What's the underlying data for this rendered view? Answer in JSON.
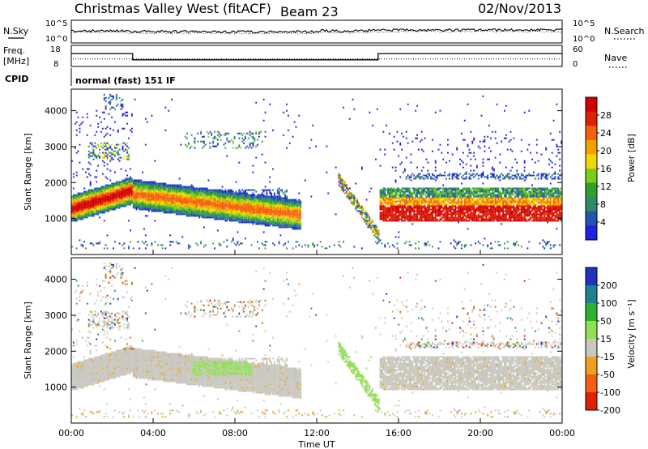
{
  "header": {
    "station": "Christmas Valley West (fitACF)",
    "beam": "Beam 23",
    "date": "02/Nov/2013"
  },
  "noise_panel": {
    "left_label": "N.Sky",
    "right_label": "N.Search",
    "left_ticks": [
      "10^5",
      "10^0"
    ],
    "right_ticks": [
      "10^5",
      "10^0"
    ]
  },
  "freq_panel": {
    "left_label": "Freq.",
    "left_unit": "[MHz]",
    "right_label": "Nave",
    "left_ticks": [
      "18",
      "8"
    ],
    "right_ticks": [
      "60",
      "0"
    ],
    "freq_steps": [
      {
        "from_hour": 0,
        "to_hour": 3,
        "mhz": 14.3
      },
      {
        "from_hour": 3,
        "to_hour": 15,
        "mhz": 10.8
      },
      {
        "from_hour": 15,
        "to_hour": 24,
        "mhz": 14.3
      }
    ],
    "nave_level": 20
  },
  "cpid": {
    "label": "CPID",
    "value": "normal (fast) 151 IF"
  },
  "chart_data": [
    {
      "type": "heatmap",
      "name": "power",
      "ylabel": "Slant Range [km]",
      "ylim": [
        0,
        4600
      ],
      "yticks": [
        "1000",
        "2000",
        "3000",
        "4000"
      ],
      "colorbar_label": "Power [dB]",
      "colorbar_ticks": [
        "4",
        "8",
        "12",
        "16",
        "20",
        "24",
        "28"
      ],
      "colors": [
        "#2020dd",
        "#2255b0",
        "#2e8a6a",
        "#2ea02e",
        "#7ccc1c",
        "#f0d800",
        "#f4a000",
        "#f46010",
        "#e02000",
        "#d00000"
      ]
    },
    {
      "type": "heatmap",
      "name": "velocity",
      "ylabel": "Slant Range [km]",
      "xlabel": "Time UT",
      "ylim": [
        0,
        4600
      ],
      "yticks": [
        "1000",
        "2000",
        "3000",
        "4000"
      ],
      "xticks": [
        "00:00",
        "04:00",
        "08:00",
        "12:00",
        "16:00",
        "20:00",
        "00:00"
      ],
      "xlim_hours": [
        0,
        24
      ],
      "colorbar_label": "Velocity [m s⁻¹]",
      "colorbar_ticks": [
        "200",
        "100",
        "50",
        "15",
        "-15",
        "-50",
        "-100",
        "-200"
      ],
      "colors": [
        "#2030c0",
        "#208090",
        "#30b030",
        "#90e050",
        "#c8c8c0",
        "#f0a020",
        "#f06010",
        "#e02000"
      ]
    }
  ]
}
